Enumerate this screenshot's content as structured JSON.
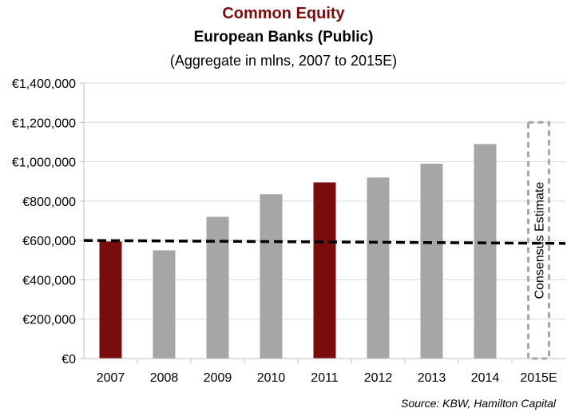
{
  "chart_data": {
    "type": "bar",
    "title": "Common Equity",
    "subtitle": "European Banks (Public)",
    "subtitle2": "(Aggregate in mlns, 2007 to 2015E)",
    "categories": [
      "2007",
      "2008",
      "2009",
      "2010",
      "2011",
      "2012",
      "2013",
      "2014",
      "2015E"
    ],
    "values": [
      595000,
      550000,
      720000,
      835000,
      895000,
      920000,
      990000,
      1090000,
      null
    ],
    "highlighted": [
      "2007",
      "2011"
    ],
    "ylim": [
      0,
      1400000
    ],
    "yticks": [
      0,
      200000,
      400000,
      600000,
      800000,
      1000000,
      1200000,
      1400000
    ],
    "ytick_labels": [
      "€0",
      "€200,000",
      "€400,000",
      "€600,000",
      "€800,000",
      "€1,000,000",
      "€1,200,000",
      "€1,400,000"
    ],
    "reference_line": {
      "style": "dashed",
      "start_value": 600000,
      "end_value": 585000
    },
    "estimate_box": {
      "category": "2015E",
      "label": "Consensus Estimate",
      "value": 1200000
    },
    "grid": true,
    "source": "Source: KBW, Hamilton Capital",
    "colors": {
      "bar": "#a6a6a6",
      "highlight": "#7b0c0c",
      "title": "#7b0c0c",
      "grid": "#d9d9d9",
      "axis": "#bfbfbf",
      "reference_line": "#000000",
      "estimate_box": "#a6a6a6"
    }
  }
}
